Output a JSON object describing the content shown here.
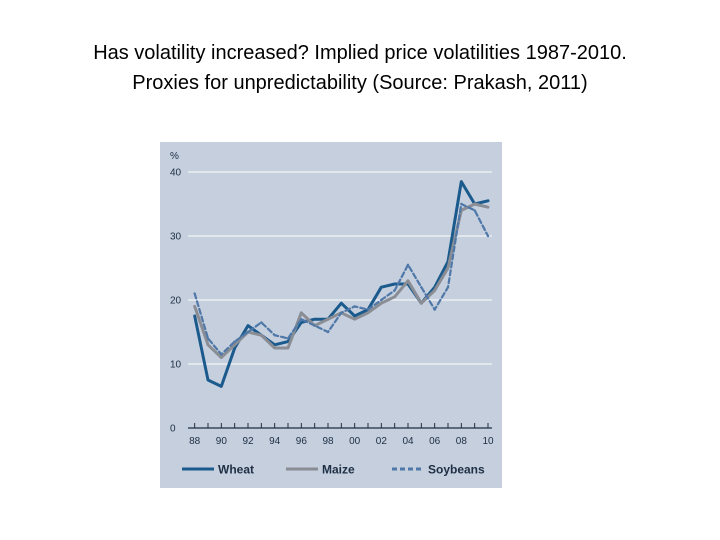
{
  "slide": {
    "title_line1": "Has volatility increased? Implied price volatilities 1987-2010.",
    "title_line2": "Proxies for unpredictability (Source: Prakash, 2011)"
  },
  "chart_data": {
    "type": "line",
    "title": "Has volatility increased? Implied price volatilities 1987-2010.",
    "subtitle": "Proxies for unpredictability (Source: Prakash, 2011)",
    "ylabel": "%",
    "xlabel": "",
    "ylim": [
      0,
      40
    ],
    "xlim": [
      1987.5,
      2010.3
    ],
    "y_ticks": [
      0,
      10,
      20,
      30,
      40
    ],
    "x_ticks": [
      1988,
      1990,
      1992,
      1994,
      1996,
      1998,
      2000,
      2002,
      2004,
      2006,
      2008,
      2010
    ],
    "x_tick_labels": [
      "88",
      "90",
      "92",
      "94",
      "96",
      "98",
      "00",
      "02",
      "04",
      "06",
      "08",
      "10"
    ],
    "legend_position": "bottom",
    "series": [
      {
        "name": "Wheat",
        "color": "#1b5a8c",
        "style": "solid",
        "x": [
          1988,
          1989,
          1990,
          1991,
          1992,
          1993,
          1994,
          1995,
          1996,
          1997,
          1998,
          1999,
          2000,
          2001,
          2002,
          2003,
          2004,
          2005,
          2006,
          2007,
          2008,
          2009,
          2010
        ],
        "values": [
          17.5,
          7.5,
          6.5,
          12.5,
          16,
          14.5,
          13,
          13.5,
          16.5,
          17,
          17,
          19.5,
          17.5,
          18.5,
          22,
          22.5,
          22.5,
          19.5,
          22,
          26,
          38.5,
          35,
          35.5
        ]
      },
      {
        "name": "Maize",
        "color": "#8a8e94",
        "style": "solid",
        "x": [
          1988,
          1989,
          1990,
          1991,
          1992,
          1993,
          1994,
          1995,
          1996,
          1997,
          1998,
          1999,
          2000,
          2001,
          2002,
          2003,
          2004,
          2005,
          2006,
          2007,
          2008,
          2009,
          2010
        ],
        "values": [
          19,
          13,
          11,
          13,
          15,
          14.5,
          12.5,
          12.5,
          18,
          16,
          17,
          18,
          17,
          18,
          19.5,
          20.5,
          23,
          19.5,
          21.5,
          25,
          34,
          35,
          34.5
        ]
      },
      {
        "name": "Soybeans",
        "color": "#4f78a8",
        "style": "dashed",
        "x": [
          1988,
          1989,
          1990,
          1991,
          1992,
          1993,
          1994,
          1995,
          1996,
          1997,
          1998,
          1999,
          2000,
          2001,
          2002,
          2003,
          2004,
          2005,
          2006,
          2007,
          2008,
          2009,
          2010
        ],
        "values": [
          21,
          14,
          11.5,
          13.5,
          15,
          16.5,
          14.5,
          14,
          17,
          16,
          15,
          18,
          19,
          18.5,
          20,
          21.5,
          25.5,
          22,
          18.5,
          22,
          35,
          34,
          30
        ]
      }
    ]
  }
}
